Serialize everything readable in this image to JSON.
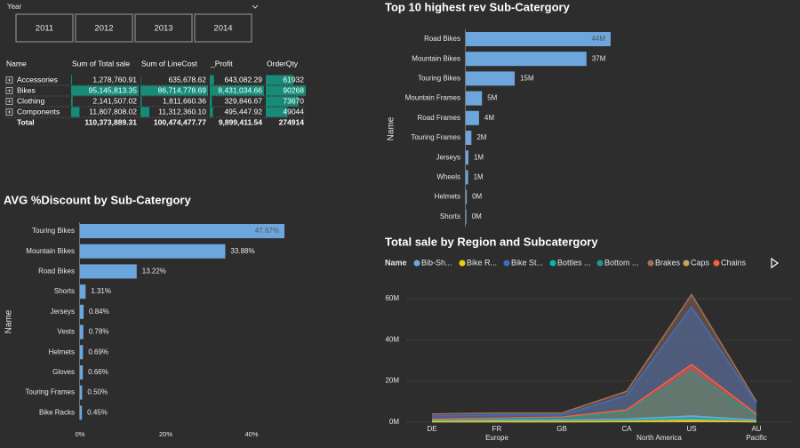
{
  "slicer": {
    "title": "Year",
    "options": [
      "2011",
      "2012",
      "2013",
      "2014"
    ]
  },
  "table": {
    "columns": [
      "Name",
      "Sum of Total sale",
      "Sum of LineCost",
      "_Profit",
      "OrderQty"
    ],
    "rows": [
      [
        "Accessories",
        "1,278,760.91",
        "635,678.62",
        "643,082.29",
        "61932"
      ],
      [
        "Bikes",
        "95,145,813.35",
        "86,714,778.69",
        "8,431,034.66",
        "90268"
      ],
      [
        "Clothing",
        "2,141,507.02",
        "1,811,660.36",
        "329,846.67",
        "73670"
      ],
      [
        "Components",
        "11,807,808.02",
        "11,312,360.10",
        "495,447.92",
        "49044"
      ]
    ],
    "total": [
      "Total",
      "110,373,889.31",
      "100,474,477.77",
      "9,899,411.54",
      "274914"
    ]
  },
  "chart_data": [
    {
      "type": "hbar",
      "title": "Top 10 highest rev Sub-Catergory",
      "y_label": "Name",
      "categories": [
        "Road Bikes",
        "Mountain Bikes",
        "Touring Bikes",
        "Mountain Frames",
        "Road Frames",
        "Touring Frames",
        "Jerseys",
        "Wheels",
        "Helmets",
        "Shorts"
      ],
      "values": [
        43800000,
        36500000,
        14800000,
        4900000,
        4000000,
        1700000,
        800000,
        700000,
        300000,
        200000
      ],
      "value_labels": [
        "44M",
        "37M",
        "15M",
        "5M",
        "4M",
        "2M",
        "1M",
        "1M",
        "0M",
        "0M"
      ],
      "color": "#6ca6dc"
    },
    {
      "type": "hbar",
      "title": "AVG %Discount by Sub-Catergory",
      "y_label": "Name",
      "categories": [
        "Touring Bikes",
        "Mountain Bikes",
        "Road Bikes",
        "Shorts",
        "Jerseys",
        "Vests",
        "Helmets",
        "Gloves",
        "Touring Frames",
        "Bike Racks"
      ],
      "values": [
        47.67,
        33.88,
        13.22,
        1.31,
        0.84,
        0.78,
        0.69,
        0.66,
        0.5,
        0.45
      ],
      "value_labels": [
        "47.67%",
        "33.88%",
        "13.22%",
        "1.31%",
        "0.84%",
        "0.78%",
        "0.69%",
        "0.66%",
        "0.50%",
        "0.45%"
      ],
      "xlim": [
        0,
        48
      ],
      "xticks": [
        {
          "value": 0,
          "label": "0%"
        },
        {
          "value": 20,
          "label": "20%"
        },
        {
          "value": 40,
          "label": "40%"
        }
      ],
      "color": "#6ca6dc"
    },
    {
      "type": "area",
      "title": "Total sale by Region and Subcatergory",
      "legend_title": "Name",
      "groups": [
        {
          "label": "Europe",
          "categories": [
            "DE",
            "FR",
            "GB"
          ]
        },
        {
          "label": "North America",
          "categories": [
            "CA",
            "US"
          ]
        },
        {
          "label": "Pacific",
          "categories": [
            "AU"
          ]
        }
      ],
      "ylim": [
        0,
        66
      ],
      "yticks": [
        {
          "value": 0,
          "label": "0M"
        },
        {
          "value": 20,
          "label": "20M"
        },
        {
          "value": 40,
          "label": "40M"
        },
        {
          "value": 60,
          "label": "60M"
        }
      ],
      "grid": true,
      "series": [
        {
          "name": "Bib-Sh...",
          "color": "#6ea8e0",
          "values": [
            0.8,
            1,
            1,
            1.5,
            3,
            1
          ]
        },
        {
          "name": "Bike R...",
          "color": "#f2c80f",
          "values": [
            0.2,
            0.2,
            0.2,
            0.3,
            0.6,
            0.2
          ]
        },
        {
          "name": "Bike St...",
          "color": "#3b6fc4",
          "values": [
            3,
            3.5,
            3.5,
            13,
            56,
            9
          ]
        },
        {
          "name": "Bottles ...",
          "color": "#01b8aa",
          "values": [
            0.5,
            0.5,
            0.5,
            1,
            2,
            0.5
          ]
        },
        {
          "name": "Bottom ...",
          "color": "#1f9a86",
          "values": [
            1,
            1.5,
            2,
            5,
            24,
            3
          ]
        },
        {
          "name": "Brakes",
          "color": "#a0705a",
          "values": [
            4,
            4.5,
            4.5,
            15,
            62,
            10
          ]
        },
        {
          "name": "Caps",
          "color": "#c9a25f",
          "values": [
            0.3,
            0.3,
            0.3,
            0.5,
            1,
            0.3
          ]
        },
        {
          "name": "Chains",
          "color": "#fd5e39",
          "values": [
            1.5,
            2,
            2.5,
            6,
            28,
            4
          ]
        }
      ]
    }
  ]
}
